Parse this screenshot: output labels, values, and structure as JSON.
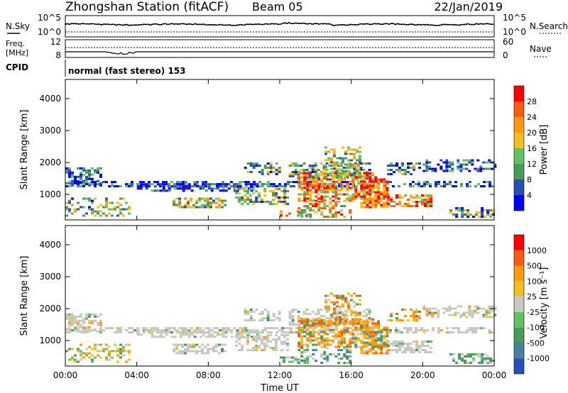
{
  "header": {
    "title": "Zhongshan Station (fitACF)",
    "beam": "Beam 05",
    "date": "22/Jan/2019"
  },
  "colors": {
    "power_scale": [
      "#0000ff",
      "#2850b4",
      "#4a9a5a",
      "#62c262",
      "#f0c020",
      "#ff9a10",
      "#ff5a10",
      "#ff0000"
    ],
    "velocity_scale": [
      "#2850b4",
      "#4a7fa0",
      "#4a9a5a",
      "#62c262",
      "#c8c8c0",
      "#f0c020",
      "#ff9a10",
      "#ff5a10",
      "#ff0000"
    ],
    "ground_scatter": "#c8c8c0"
  },
  "top_panels": {
    "nsky_label": "N.Sky",
    "nsky_ticks": [
      "10^5",
      "10^0"
    ],
    "nsearch_label": "N.Search",
    "nsearch_ticks": [
      "10^5",
      "10^0"
    ],
    "freq_label_1": "Freq.",
    "freq_label_2": "[MHz]",
    "freq_ticks": [
      "12",
      "8"
    ],
    "nave_label": "Nave",
    "nave_ticks": [
      "60",
      "0"
    ],
    "cpid_label": "CPID",
    "cpid_text": "normal (fast stereo) 153"
  },
  "chart_data": [
    {
      "type": "heatmap",
      "name": "power",
      "ylabel": "Slant Range [km]",
      "ylim": [
        200,
        4600
      ],
      "yticks": [
        1000,
        2000,
        3000,
        4000
      ],
      "xlim": [
        0,
        24
      ],
      "xticks": [
        0,
        4,
        8,
        12,
        16,
        20,
        24
      ],
      "xticklabels": [
        "00:00",
        "04:00",
        "08:00",
        "12:00",
        "16:00",
        "20:00",
        "00:00"
      ],
      "colorbar_label": "Power [dB]",
      "colorbar_ticks": [
        "4",
        "8",
        "12",
        "16",
        "20",
        "24",
        "28"
      ],
      "colorbar_range": [
        0,
        32
      ]
    },
    {
      "type": "heatmap",
      "name": "velocity",
      "ylabel": "Slant Range [km]",
      "ylim": [
        200,
        4600
      ],
      "yticks": [
        1000,
        2000,
        3000,
        4000
      ],
      "xlim": [
        0,
        24
      ],
      "xticks": [
        0,
        4,
        8,
        12,
        16,
        20,
        24
      ],
      "xticklabels": [
        "00:00",
        "04:00",
        "08:00",
        "12:00",
        "16:00",
        "20:00",
        "00:00"
      ],
      "xlabel": "Time UT",
      "colorbar_label": "Velocity [m s⁻¹]",
      "colorbar_ticks": [
        "1000",
        "500",
        "100",
        "25",
        "-25",
        "-100",
        "-500",
        "-1000"
      ]
    }
  ]
}
